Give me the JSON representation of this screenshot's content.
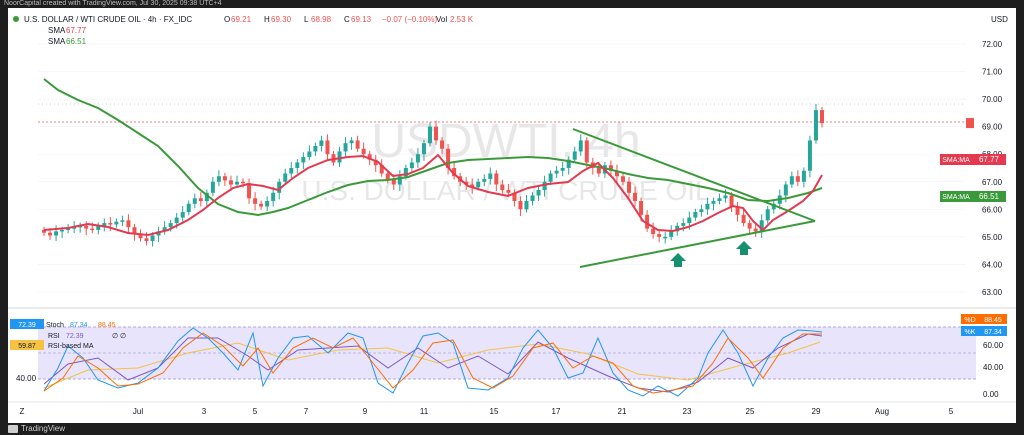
{
  "header": {
    "top_caption": "NoorCapital created with TradingView.com, Jul 30, 2025 09:38 UTC+4",
    "title": "U.S. DOLLAR / WTI CRUDE OIL · 4h · FX_IDC",
    "ohlc": [
      {
        "k": "O",
        "v": "69.21"
      },
      {
        "k": "H",
        "v": "69.30"
      },
      {
        "k": "L",
        "v": "68.98"
      },
      {
        "k": "C",
        "v": "69.13"
      }
    ],
    "change": "−0.07 (−0.10%)",
    "vol_label": "Vol",
    "vol": "2.53 K",
    "indicators": [
      {
        "name": "SMA",
        "value": "67.77",
        "color": "#e53950"
      },
      {
        "name": "SMA",
        "value": "66.51",
        "color": "#3a9a3a"
      }
    ],
    "currency": "USD"
  },
  "watermark": {
    "symbol": "USDWTI, 4h",
    "name": "U.S. DOLLAR / WTI CRUDE OIL"
  },
  "badges": {
    "sma_fast": "SMA:MA",
    "sma_slow": "SMA:MA",
    "d": "%D",
    "k": "%K"
  },
  "osc_legend": {
    "row1_value": "72.39",
    "row1_name": "Stoch",
    "row1_k": "87.34",
    "row1_d": "88.45",
    "row2_name": "RSI",
    "row2_value": "72.39",
    "row2_extra": "∅ ∅",
    "row3_value": "59.87",
    "row3_name": "RSI-based MA",
    "left_40": "40.00"
  },
  "brand": "TradingView",
  "colors": {
    "up": "#26a69a",
    "down": "#ef5350",
    "sma_fast": "#e53950",
    "sma_slow": "#3a9a3a",
    "trend": "#3a9a3a",
    "arrow": "#16916e",
    "stoch_k": "#2196f3",
    "stoch_d": "#ff6d00",
    "rsi": "#7e57c2",
    "rsi_ma": "#f5c242",
    "osc_bg": "#e8e4fb"
  },
  "chart_data": {
    "type": "candlestick",
    "instrument": "U.S. DOLLAR / WTI CRUDE OIL",
    "timeframe": "4h",
    "price_axis": {
      "ticks": [
        "63.00",
        "64.00",
        "65.00",
        "66.00",
        "67.00",
        "68.00",
        "69.00",
        "70.00",
        "71.00",
        "72.00"
      ],
      "ylim": [
        62.3,
        72.6
      ]
    },
    "x_ticks": [
      "Z",
      "Jul",
      "3",
      "5",
      "7",
      "9",
      "11",
      "15",
      "17",
      "21",
      "23",
      "25",
      "29",
      "Aug",
      "5"
    ],
    "last_price": "69.13",
    "sma_fast_last": "67.77",
    "sma_slow_last": "66.51",
    "closes": [
      65.15,
      65.05,
      65.2,
      65.25,
      65.3,
      65.35,
      65.4,
      65.3,
      65.25,
      65.4,
      65.5,
      65.45,
      65.55,
      65.6,
      65.35,
      65.1,
      64.95,
      64.85,
      65.05,
      65.2,
      65.35,
      65.5,
      65.7,
      65.9,
      66.2,
      66.4,
      66.3,
      66.6,
      67.0,
      67.2,
      67.05,
      66.9,
      67.0,
      66.95,
      66.4,
      66.2,
      66.1,
      66.3,
      66.6,
      67.0,
      67.3,
      67.5,
      67.7,
      67.9,
      68.1,
      68.3,
      68.5,
      68.0,
      67.7,
      68.1,
      68.4,
      68.5,
      68.2,
      68.0,
      67.8,
      67.6,
      67.3,
      67.1,
      66.9,
      67.2,
      67.5,
      67.7,
      68.0,
      68.4,
      69.0,
      68.5,
      68.2,
      67.5,
      67.2,
      67.0,
      66.9,
      66.8,
      67.0,
      67.1,
      67.3,
      66.9,
      66.7,
      66.6,
      66.3,
      66.0,
      66.3,
      66.5,
      66.7,
      67.0,
      67.3,
      67.4,
      67.5,
      67.8,
      68.1,
      68.5,
      67.7,
      67.5,
      67.3,
      67.6,
      67.4,
      67.2,
      67.0,
      66.6,
      66.3,
      65.8,
      65.3,
      65.1,
      65.0,
      65.0,
      65.2,
      65.4,
      65.5,
      65.7,
      65.9,
      66.0,
      66.2,
      66.3,
      66.4,
      66.5,
      66.1,
      65.8,
      65.5,
      65.3,
      65.2,
      65.6,
      66.0,
      66.2,
      66.5,
      66.9,
      67.2,
      67.0,
      67.4,
      68.5,
      69.6,
      69.13
    ]
  }
}
